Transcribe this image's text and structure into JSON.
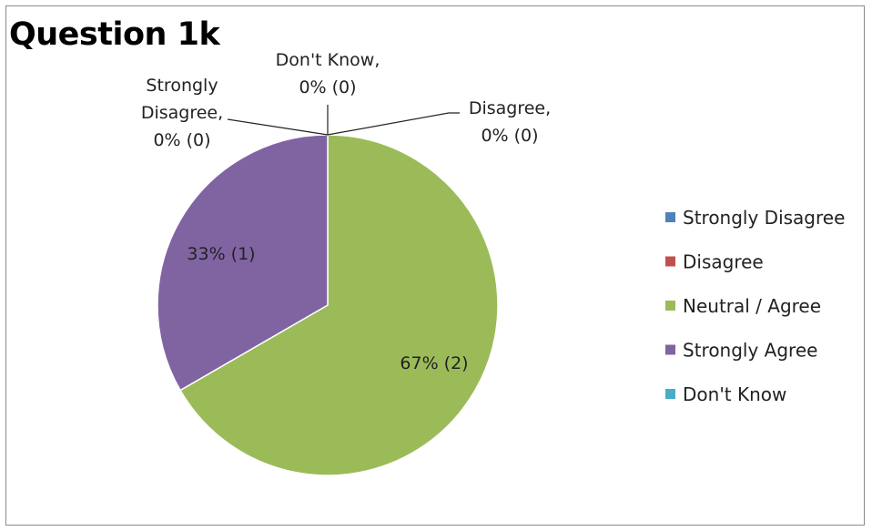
{
  "chart_data": {
    "type": "pie",
    "title": "Question 1k",
    "categories": [
      "Strongly Disagree",
      "Disagree",
      "Neutral / Agree",
      "Strongly Agree",
      "Don't Know"
    ],
    "values": [
      0,
      0,
      2,
      1,
      0
    ],
    "data_labels": [
      [
        "Strongly",
        "Disagree,",
        "0% (0)"
      ],
      [
        "Disagree,",
        "0% (0)"
      ],
      [
        "67% (2)"
      ],
      [
        "33% (1)"
      ],
      [
        "Don't Know,",
        "0% (0)"
      ]
    ],
    "colors": [
      "#4f81bd",
      "#c0504d",
      "#9bbb59",
      "#8064a2",
      "#4bacc6"
    ],
    "legend": {
      "position": "right",
      "items": [
        "Strongly Disagree",
        "Disagree",
        "Neutral / Agree",
        "Strongly Agree",
        "Don't Know"
      ]
    }
  }
}
